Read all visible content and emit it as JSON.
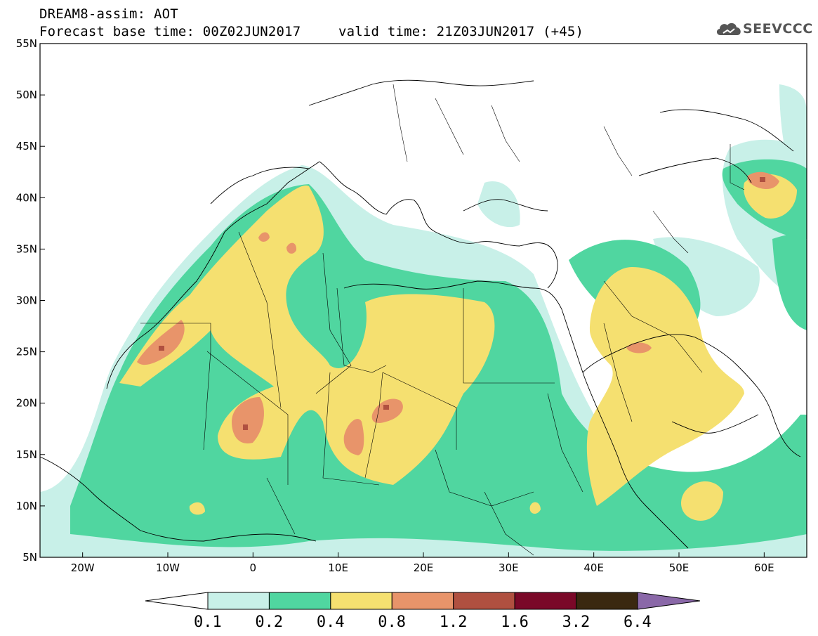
{
  "title": {
    "model": "DREAM8-assim: AOT",
    "base_time": "Forecast base time: 00Z02JUN2017",
    "valid_time": "valid time: 21Z03JUN2017 (+45)"
  },
  "logo": {
    "text": "SEEVCCC",
    "icon": "cloud-icon"
  },
  "map": {
    "lon_range": [
      -25,
      65
    ],
    "lat_range": [
      5,
      55
    ],
    "lon_ticks": [
      {
        "value": -20,
        "label": "20W"
      },
      {
        "value": -10,
        "label": "10W"
      },
      {
        "value": 0,
        "label": "0"
      },
      {
        "value": 10,
        "label": "10E"
      },
      {
        "value": 20,
        "label": "20E"
      },
      {
        "value": 30,
        "label": "30E"
      },
      {
        "value": 40,
        "label": "40E"
      },
      {
        "value": 50,
        "label": "50E"
      },
      {
        "value": 60,
        "label": "60E"
      }
    ],
    "lat_ticks": [
      {
        "value": 55,
        "label": "55N"
      },
      {
        "value": 50,
        "label": "50N"
      },
      {
        "value": 45,
        "label": "45N"
      },
      {
        "value": 40,
        "label": "40N"
      },
      {
        "value": 35,
        "label": "35N"
      },
      {
        "value": 30,
        "label": "30N"
      },
      {
        "value": 25,
        "label": "25N"
      },
      {
        "value": 20,
        "label": "20N"
      },
      {
        "value": 15,
        "label": "15N"
      },
      {
        "value": 10,
        "label": "10N"
      },
      {
        "value": 5,
        "label": "5N"
      }
    ]
  },
  "colorbar": {
    "colors": [
      "#c8f0e8",
      "#50d6a0",
      "#f5e070",
      "#e8946a",
      "#b05040",
      "#7a0828",
      "#3a2810",
      "#8a68a8"
    ],
    "levels": [
      "0.1",
      "0.2",
      "0.4",
      "0.8",
      "1.2",
      "1.6",
      "3.2",
      "6.4"
    ]
  }
}
